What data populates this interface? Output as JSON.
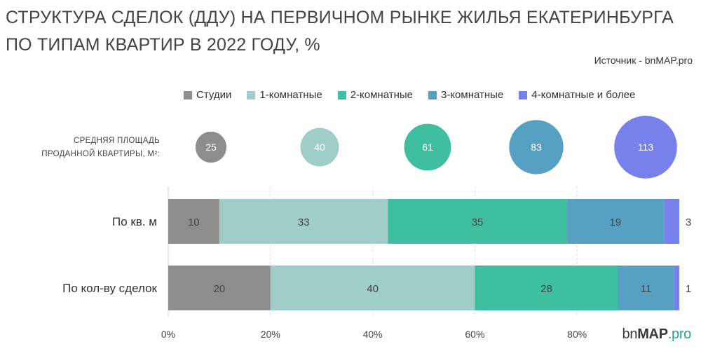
{
  "title": "СТРУКТУРА СДЕЛОК (ДДУ) НА ПЕРВИЧНОМ РЫНКЕ ЖИЛЬЯ ЕКАТЕРИНБУРГА ПО ТИПАМ КВАРТИР В 2022 ГОДУ, %",
  "source": "Источник - bnMAP.pro",
  "bubbles_label": "Средняя площадь проданной квартиры, м²:",
  "logo": {
    "bn": "bn",
    "map": "MAP",
    "pro": ".pro"
  },
  "chart_data": {
    "type": "bar",
    "orientation": "horizontal",
    "stacked": true,
    "categories": [
      "По кв. м",
      "По кол-ву сделок"
    ],
    "series": [
      {
        "name": "Студии",
        "color": "#8d8d8d",
        "values": [
          10,
          20
        ],
        "avg_area": 25
      },
      {
        "name": "1-комнатные",
        "color": "#9fcdc7",
        "values": [
          33,
          40
        ],
        "avg_area": 40
      },
      {
        "name": "2-комнатные",
        "color": "#3fbfa0",
        "values": [
          35,
          28
        ],
        "avg_area": 61
      },
      {
        "name": "3-комнатные",
        "color": "#56a0c4",
        "values": [
          19,
          11
        ],
        "avg_area": 83
      },
      {
        "name": "4-комнатные и более",
        "color": "#7880ec",
        "values": [
          3,
          1
        ],
        "avg_area": 113
      }
    ],
    "xlim": [
      0,
      100
    ],
    "xticks": [
      0,
      20,
      40,
      60,
      80
    ],
    "xtick_labels": [
      "0%",
      "20%",
      "40%",
      "60%",
      "80%"
    ],
    "grid": true,
    "legend": "top"
  }
}
